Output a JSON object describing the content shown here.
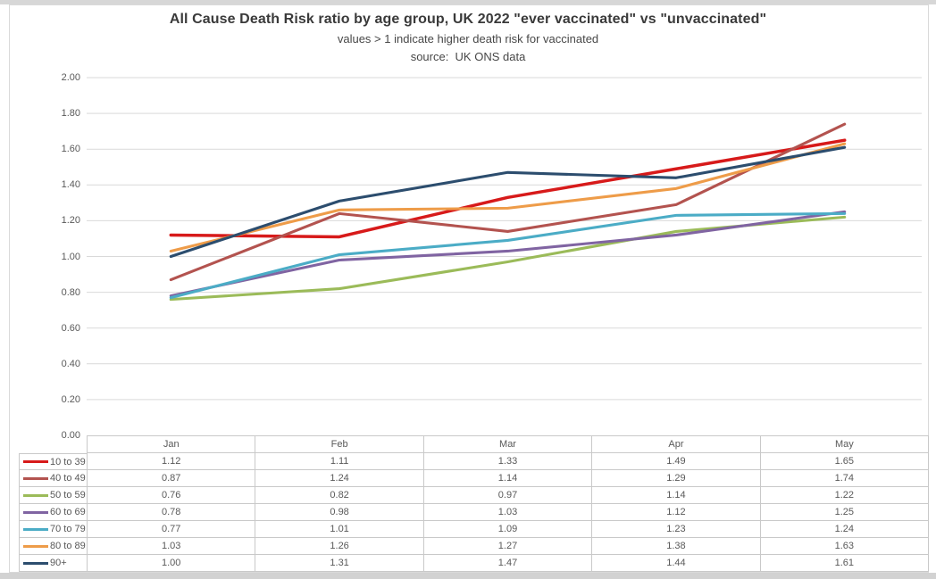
{
  "header": {
    "title": "All Cause Death Risk ratio by age group, UK 2022 \"ever vaccinated\" vs \"unvaccinated\"",
    "subtitle": "values > 1 indicate higher death risk for vaccinated",
    "source": "source:  UK ONS data"
  },
  "chart_data": {
    "type": "line",
    "title": "All Cause Death Risk ratio by age group, UK 2022 \"ever vaccinated\" vs \"unvaccinated\"",
    "subtitle": "values > 1 indicate higher death risk for vaccinated",
    "source": "source:  UK ONS data",
    "xlabel": "",
    "ylabel": "",
    "categories": [
      "Jan",
      "Feb",
      "Mar",
      "Apr",
      "May"
    ],
    "series": [
      {
        "name": "10 to 39",
        "color": "#d71a1a",
        "values": [
          1.12,
          1.11,
          1.33,
          1.49,
          1.65
        ]
      },
      {
        "name": "40 to 49",
        "color": "#b3534f",
        "values": [
          0.87,
          1.24,
          1.14,
          1.29,
          1.74
        ]
      },
      {
        "name": "50 to 59",
        "color": "#9bbb59",
        "values": [
          0.76,
          0.82,
          0.97,
          1.14,
          1.22
        ]
      },
      {
        "name": "60 to 69",
        "color": "#8064a2",
        "values": [
          0.78,
          0.98,
          1.03,
          1.12,
          1.25
        ]
      },
      {
        "name": "70 to 79",
        "color": "#4bacc6",
        "values": [
          0.77,
          1.01,
          1.09,
          1.23,
          1.24
        ]
      },
      {
        "name": "80 to 89",
        "color": "#ee9c49",
        "values": [
          1.03,
          1.26,
          1.27,
          1.38,
          1.63
        ]
      },
      {
        "name": "90+",
        "color": "#2c4d6e",
        "values": [
          1.0,
          1.31,
          1.47,
          1.44,
          1.61
        ]
      }
    ],
    "ylim": [
      0,
      2
    ],
    "ytick_step": 0.2,
    "ytick_labels": [
      "0.00",
      "0.20",
      "0.40",
      "0.60",
      "0.80",
      "1.00",
      "1.20",
      "1.40",
      "1.60",
      "1.80",
      "2.00"
    ],
    "grid": true,
    "gridline_color": "#d9d9d9",
    "legend_position": "data-table-left",
    "value_format_decimals": 2
  }
}
